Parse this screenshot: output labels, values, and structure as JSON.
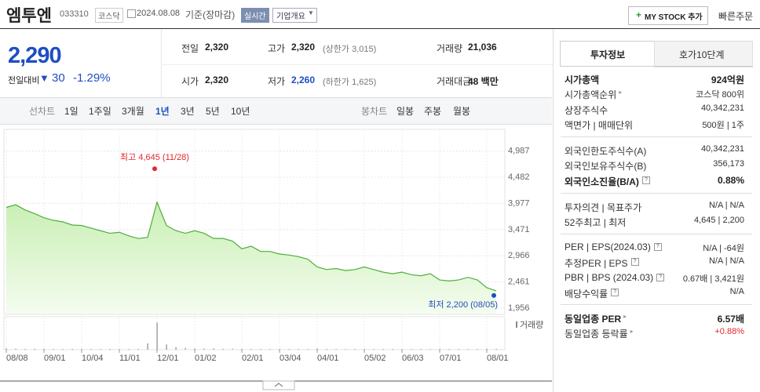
{
  "header": {
    "name": "엠투엔",
    "code": "033310",
    "market": "코스닥",
    "date": "2024.08.08",
    "basis": "기준(장마감)",
    "realtime": "실시간",
    "overview": "기업개요",
    "my_stock": "MY STOCK 추가",
    "quick_order": "빠른주문"
  },
  "price": {
    "current": "2,290",
    "change_label": "전일대비",
    "change": "30",
    "rate": "-1.29%"
  },
  "summary": {
    "rows": [
      [
        {
          "label": "전일",
          "value": "2,320"
        },
        {
          "label": "고가",
          "value": "2,320",
          "note": "(상한가 3,015)"
        },
        {
          "label": "거래량",
          "value": "21,036"
        }
      ],
      [
        {
          "label": "시가",
          "value": "2,320"
        },
        {
          "label": "저가",
          "value": "2,260",
          "note": "(하한가 1,625)"
        },
        {
          "label": "거래대금",
          "value": "48 백만"
        }
      ]
    ]
  },
  "periods": {
    "line_label": "선차트",
    "line": [
      "1일",
      "1주일",
      "3개월",
      "1년",
      "3년",
      "5년",
      "10년"
    ],
    "candle_label": "봉차트",
    "candle": [
      "일봉",
      "주봉",
      "월봉"
    ]
  },
  "info": {
    "tabs": [
      "투자정보",
      "호가10단계"
    ],
    "sections": [
      [
        {
          "label": "시가총액",
          "value": "924억원"
        },
        {
          "label": "시가총액순위",
          "value": "코스닥 800위"
        },
        {
          "label": "상장주식수",
          "value": "40,342,231"
        },
        {
          "label": "액면가 | 매매단위",
          "value": "500원 | 1주"
        }
      ],
      [
        {
          "label": "외국인한도주식수(A)",
          "value": "40,342,231"
        },
        {
          "label": "외국인보유주식수(B)",
          "value": "356,173"
        },
        {
          "label": "외국인소진율(B/A)",
          "value": "0.88%"
        }
      ],
      [
        {
          "label": "투자의견 | 목표주가",
          "value": "N/A | N/A"
        },
        {
          "label": "52주최고 | 최저",
          "value": "4,645 | 2,200"
        }
      ],
      [
        {
          "label": "PER | EPS(2024.03)",
          "value": "N/A | -64원"
        },
        {
          "label": "추정PER | EPS",
          "value": "N/A | N/A"
        },
        {
          "label": "PBR | BPS (2024.03)",
          "value": "0.67배 | 3,421원"
        },
        {
          "label": "배당수익률",
          "value": "N/A"
        }
      ],
      [
        {
          "label": "동일업종 PER",
          "value": "6.57배"
        },
        {
          "label": "동일업종 등락률",
          "value": "+0.88%"
        }
      ]
    ]
  },
  "chart_data": {
    "type": "area",
    "color": "#4fae3a",
    "grid": true,
    "categories": [
      "08/08",
      null,
      null,
      null,
      "09/01",
      null,
      null,
      null,
      "10/04",
      null,
      null,
      null,
      "11/01",
      null,
      null,
      null,
      "12/01",
      null,
      null,
      null,
      "01/02",
      null,
      null,
      null,
      null,
      "02/01",
      null,
      null,
      null,
      "03/04",
      null,
      null,
      null,
      "04/01",
      null,
      null,
      null,
      null,
      "05/02",
      null,
      null,
      null,
      "06/03",
      null,
      null,
      null,
      "07/01",
      null,
      null,
      null,
      null,
      "08/01",
      null
    ],
    "series": [
      {
        "values": [
          3900,
          3950,
          3850,
          3780,
          3700,
          3650,
          3620,
          3560,
          3550,
          3500,
          3450,
          3400,
          3420,
          3350,
          3300,
          3320,
          4000,
          3550,
          3450,
          3400,
          3450,
          3400,
          3300,
          3300,
          3250,
          3100,
          3150,
          3050,
          3050,
          3000,
          2980,
          2950,
          2900,
          2750,
          2700,
          2720,
          2680,
          2700,
          2750,
          2700,
          2650,
          2620,
          2650,
          2600,
          2580,
          2620,
          2500,
          2480,
          2500,
          2550,
          2500,
          2350,
          2290
        ]
      },
      {
        "name": "거래량",
        "axis": "y2",
        "values": [
          60000,
          50000,
          40000,
          45000,
          40000,
          35000,
          30000,
          40000,
          35000,
          30000,
          30000,
          35000,
          30000,
          30000,
          40000,
          300000,
          1300000,
          250000,
          120000,
          80000,
          60000,
          50000,
          60000,
          40000,
          45000,
          40000,
          35000,
          30000,
          30000,
          35000,
          30000,
          30000,
          30000,
          60000,
          40000,
          30000,
          30000,
          30000,
          35000,
          30000,
          30000,
          30000,
          30000,
          25000,
          30000,
          30000,
          40000,
          30000,
          30000,
          30000,
          30000,
          50000,
          40000
        ]
      }
    ],
    "ylim": [
      1850,
      5360
    ],
    "yticks": [
      {
        "value": 1956,
        "label": "1,956"
      },
      {
        "value": 2461,
        "label": "2,461"
      },
      {
        "value": 2966,
        "label": "2,966"
      },
      {
        "value": 3471,
        "label": "3,471"
      },
      {
        "value": 3977,
        "label": "3,977"
      },
      {
        "value": 4482,
        "label": "4,482"
      },
      {
        "value": 4987,
        "label": "4,987"
      }
    ],
    "y2lim": [
      0,
      1500000
    ],
    "annotations": [
      {
        "text": "최고 4,645 (11/28)",
        "value": 4645
      },
      {
        "text": "최저 2,200 (08/05)",
        "value": 2200
      }
    ]
  }
}
